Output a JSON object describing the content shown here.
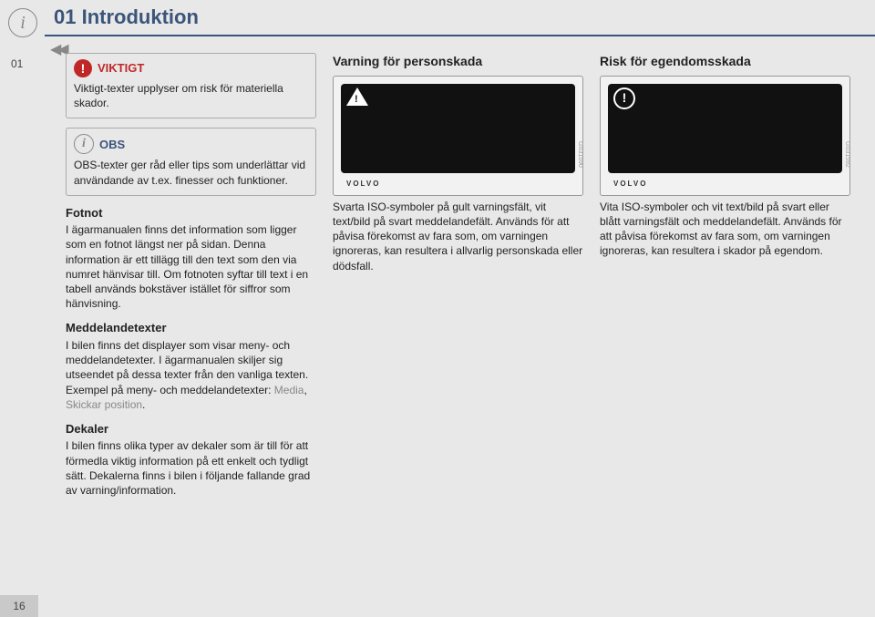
{
  "chapter_number_side": "01",
  "title": "01 Introduktion",
  "viktigt": {
    "label": "VIKTIGT",
    "text": "Viktigt-texter upplyser om risk för materiella skador."
  },
  "obs": {
    "label": "OBS",
    "text": "OBS-texter ger råd eller tips som underlättar vid användande av t.ex. finesser och funktioner."
  },
  "fotnot": {
    "heading": "Fotnot",
    "text": "I ägarmanualen finns det information som ligger som en fotnot längst ner på sidan. Denna information är ett tillägg till den text som den via numret hänvisar till. Om fotnoten syftar till text i en tabell används bokstäver istället för siffror som hänvisning."
  },
  "meddelande": {
    "heading": "Meddelandetexter",
    "text_a": "I bilen finns det displayer som visar meny- och meddelandetexter. I ägarmanualen skiljer sig utseendet på dessa texter från den vanliga texten. Exempel på meny- och meddelandetexter: ",
    "ex1": "Media",
    "sep": ", ",
    "ex2": "Skickar position",
    "dot": "."
  },
  "dekaler": {
    "heading": "Dekaler",
    "text": "I bilen finns olika typer av dekaler som är till för att förmedla viktig information på ett enkelt och tydligt sätt. Dekalerna finns i bilen i följande fallande grad av varning/information."
  },
  "col2": {
    "heading": "Varning för personskada",
    "code": "G031590",
    "text": "Svarta ISO-symboler på gult varningsfält, vit text/bild på svart meddelandefält. Används för att påvisa förekomst av fara som, om varningen ignoreras, kan resultera i allvarlig personskada eller dödsfall."
  },
  "col3": {
    "heading": "Risk för egendomsskada",
    "code": "G031592",
    "text": "Vita ISO-symboler och vit text/bild på svart eller blått varningsfält och meddelandefält. Används för att påvisa förekomst av fara som, om varningen ignoreras, kan resultera i skador på egendom."
  },
  "volvo": "VOLVO",
  "page_number": "16"
}
